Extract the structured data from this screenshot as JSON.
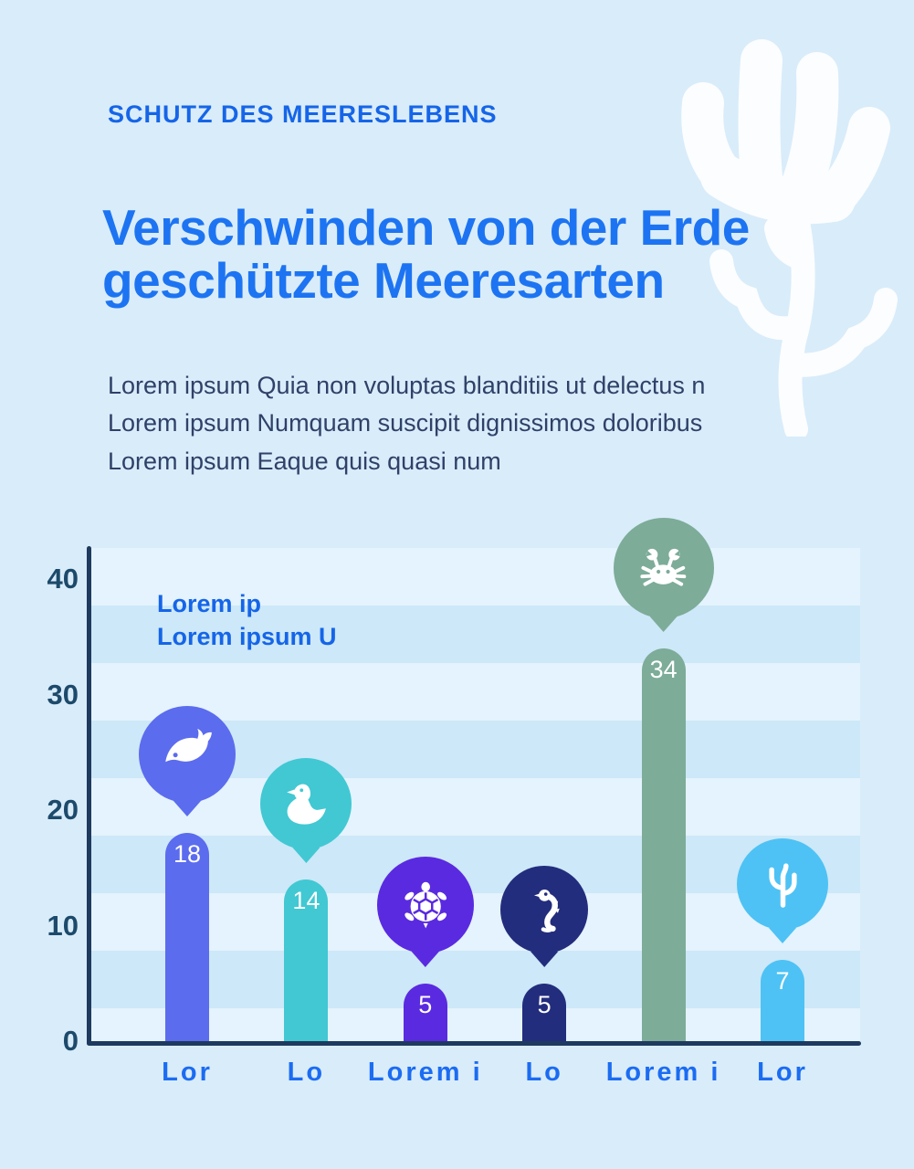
{
  "colors": {
    "background": "#d9ecfa",
    "kicker_blue": "#1565e8",
    "title_blue": "#1d74f2",
    "body_navy": "#2f4168",
    "axis_navy": "#1e3a5e",
    "tick_navy": "#1d4a6b",
    "x_label_blue": "#1b6cf2"
  },
  "header": {
    "kicker": "SCHUTZ DES MEERESLEBENS",
    "title_lines": [
      "Verschwinden von der Erde",
      "geschützte Meeresarten"
    ],
    "body_lines": [
      "Lorem ipsum Quia non voluptas blanditiis ut delectus n",
      "Lorem ipsum Numquam suscipit dignissimos doloribus",
      "Lorem ipsum Eaque quis quasi num"
    ]
  },
  "chart_data": {
    "type": "bar",
    "title": "",
    "legend_lines": [
      "Lorem ip",
      "Lorem ipsum U"
    ],
    "legend_position": "top-left-inside",
    "categories": [
      "Lor",
      "Lo",
      "Lorem i",
      "Lo",
      "Lorem i",
      "Lor"
    ],
    "values": [
      18,
      14,
      5,
      5,
      34,
      7
    ],
    "colors": [
      "#5b6cee",
      "#41c8d3",
      "#5a2ae0",
      "#232d7d",
      "#7dac99",
      "#4ec2f4"
    ],
    "icons": [
      "whale-icon",
      "duck-icon",
      "turtle-icon",
      "seahorse-icon",
      "crab-icon",
      "coral-icon"
    ],
    "y_ticks": [
      40,
      30,
      20,
      10,
      0
    ],
    "ylim": [
      0,
      40
    ],
    "grid": "horizontal-stripe-bands",
    "xlabel": "",
    "ylabel": ""
  }
}
